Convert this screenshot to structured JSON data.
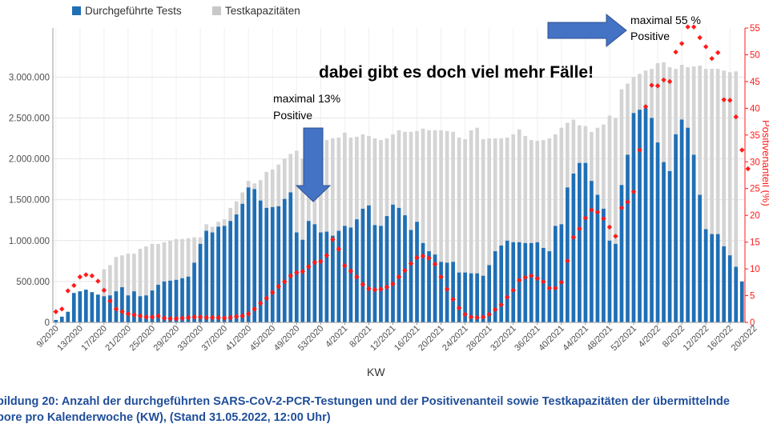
{
  "chart_data": {
    "type": "bar",
    "xlabel": "KW",
    "ylabel": "",
    "y2label": "Positivenanteil (%)",
    "ylim": [
      0,
      3600000
    ],
    "y2lim": [
      0,
      55
    ],
    "yticks": [
      "0",
      "500.000",
      "1.000.000",
      "1.500.000",
      "2.000.000",
      "2.500.000",
      "3.000.000"
    ],
    "y2ticks": [
      "0",
      "5",
      "10",
      "15",
      "20",
      "25",
      "30",
      "35",
      "40",
      "45",
      "50",
      "55"
    ],
    "xticks": [
      "9/2020",
      "13/2020",
      "17/2020",
      "21/2020",
      "25/2020",
      "29/2020",
      "33/2020",
      "37/2020",
      "41/2020",
      "45/2020",
      "49/2020",
      "53/2020",
      "4/2021",
      "8/2021",
      "12/2021",
      "16/2021",
      "20/2021",
      "24/2021",
      "28/2021",
      "32/2021",
      "36/2021",
      "40/2021",
      "44/2021",
      "48/2021",
      "52/2021",
      "4/2022",
      "8/2022",
      "12/2022",
      "16/2022",
      "20/2022"
    ],
    "grid": true,
    "legend_position": "top-left",
    "series": [
      {
        "name": "Durchgeführte Tests",
        "color": "#1f6fb5",
        "values": [
          30000,
          70000,
          130000,
          360000,
          380000,
          400000,
          370000,
          340000,
          320000,
          330000,
          380000,
          430000,
          330000,
          380000,
          320000,
          330000,
          390000,
          460000,
          500000,
          510000,
          520000,
          540000,
          560000,
          730000,
          960000,
          1120000,
          1100000,
          1170000,
          1180000,
          1240000,
          1320000,
          1450000,
          1650000,
          1630000,
          1490000,
          1400000,
          1410000,
          1420000,
          1510000,
          1590000,
          1100000,
          1010000,
          1240000,
          1200000,
          1100000,
          1110000,
          1060000,
          1120000,
          1180000,
          1160000,
          1260000,
          1390000,
          1430000,
          1190000,
          1180000,
          1300000,
          1440000,
          1400000,
          1310000,
          1130000,
          1230000,
          970000,
          870000,
          830000,
          740000,
          730000,
          740000,
          610000,
          610000,
          600000,
          600000,
          570000,
          700000,
          870000,
          940000,
          1000000,
          980000,
          980000,
          970000,
          970000,
          980000,
          910000,
          870000,
          1180000,
          1200000,
          1650000,
          1820000,
          1950000,
          1950000,
          1730000,
          1560000,
          1390000,
          1000000,
          960000,
          1680000,
          2050000,
          2560000,
          2600000,
          2620000,
          2500000,
          2200000,
          1960000,
          1850000,
          2300000,
          2480000,
          2380000,
          2050000,
          1560000,
          1140000,
          1080000,
          1080000,
          930000,
          820000,
          680000,
          500000
        ]
      },
      {
        "name": "Testkapazitäten",
        "color": "#d4d4d4",
        "values": [
          null,
          null,
          null,
          null,
          null,
          null,
          null,
          null,
          650000,
          700000,
          800000,
          820000,
          840000,
          840000,
          900000,
          930000,
          960000,
          960000,
          980000,
          1000000,
          1020000,
          1020000,
          1030000,
          1040000,
          1040000,
          1200000,
          1170000,
          1230000,
          1260000,
          1400000,
          1480000,
          1590000,
          1730000,
          1700000,
          1740000,
          1840000,
          1870000,
          1930000,
          2000000,
          2060000,
          2100000,
          2000000,
          2100000,
          2170000,
          2220000,
          2230000,
          2250000,
          2260000,
          2320000,
          2260000,
          2270000,
          2300000,
          2280000,
          2250000,
          2230000,
          2250000,
          2300000,
          2350000,
          2330000,
          2330000,
          2340000,
          2370000,
          2350000,
          2350000,
          2350000,
          2340000,
          2330000,
          2260000,
          2240000,
          2350000,
          2380000,
          2240000,
          2250000,
          2250000,
          2250000,
          2260000,
          2300000,
          2360000,
          2280000,
          2230000,
          2220000,
          2230000,
          2250000,
          2300000,
          2380000,
          2440000,
          2480000,
          2410000,
          2400000,
          2330000,
          2380000,
          2420000,
          2530000,
          2500000,
          2850000,
          2920000,
          3000000,
          3040000,
          3080000,
          3100000,
          3170000,
          3180000,
          3120000,
          3100000,
          3150000,
          3120000,
          3130000,
          3140000,
          3100000,
          3100000,
          3100000,
          3080000,
          3060000,
          3070000
        ]
      }
    ],
    "positive_share": {
      "name": "Positivenanteil",
      "color": "#ff1a1a",
      "values": [
        2.0,
        2.5,
        5.9,
        6.9,
        8.5,
        8.9,
        8.7,
        7.7,
        6.0,
        4.0,
        2.5,
        2.0,
        1.6,
        1.4,
        1.2,
        1.0,
        1.0,
        1.2,
        0.8,
        0.7,
        0.7,
        0.8,
        0.9,
        1.0,
        1.0,
        0.9,
        0.9,
        0.9,
        0.8,
        0.9,
        1.1,
        1.2,
        1.6,
        2.5,
        3.6,
        4.5,
        5.6,
        6.7,
        7.6,
        8.7,
        9.3,
        9.5,
        10.4,
        11.2,
        11.4,
        12.5,
        15.5,
        13.7,
        10.6,
        9.6,
        8.5,
        7.1,
        6.3,
        6.1,
        6.2,
        6.6,
        7.2,
        8.5,
        9.7,
        11.0,
        12.1,
        12.4,
        12.0,
        10.9,
        8.5,
        6.2,
        4.3,
        2.7,
        1.5,
        1.0,
        0.9,
        1.0,
        1.5,
        2.4,
        3.3,
        4.7,
        6.0,
        7.9,
        8.4,
        8.7,
        8.2,
        7.6,
        6.4,
        6.4,
        7.5,
        11.5,
        15.9,
        17.5,
        19.5,
        21.0,
        20.6,
        19.4,
        17.8,
        16.1,
        21.4,
        22.5,
        24.4,
        32.2,
        40.3,
        44.3,
        44.2,
        45.3,
        45.0,
        50.5,
        52.1,
        55.2,
        55.2,
        53.2,
        51.5,
        49.3,
        50.4,
        41.6,
        41.5,
        38.4,
        32.2,
        28.7
      ]
    }
  },
  "annotations": {
    "top_note_line1": "maximal 55 %",
    "top_note_line2": "Positive",
    "mid_note_line1": "maximal 13%",
    "mid_note_line2": "Positive",
    "headline": "dabei gibt es doch viel mehr Fälle!"
  },
  "caption": {
    "line1": "bildung 20: Anzahl der durchgeführten SARS-CoV-2-PCR-Testungen und der Positivenanteil sowie Testkapazitäten der übermittelnde",
    "line2": "bore pro Kalenderwoche (KW), (Stand 31.05.2022, 12:00 Uhr)"
  },
  "colors": {
    "arrow": "#4472c4",
    "arrow_border": "#2f528f",
    "axis_text": "#4d4d4d",
    "caption": "#1f4e9a"
  }
}
